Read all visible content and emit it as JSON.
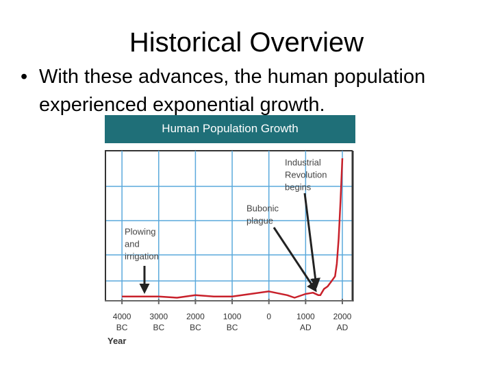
{
  "title": "Historical Overview",
  "bullet": "With these advances, the human population experienced exponential growth.",
  "chart_data": {
    "type": "line",
    "title": "Human Population Growth",
    "x_label": "Year",
    "x": [
      -4000,
      -3000,
      -2500,
      -2000,
      -1500,
      -1000,
      -500,
      0,
      500,
      700,
      1000,
      1200,
      1350,
      1400,
      1500,
      1600,
      1700,
      1800,
      1850,
      1900,
      1950,
      2000
    ],
    "series": [
      {
        "color": "#c8202a",
        "values": [
          0.2,
          0.2,
          0.15,
          0.25,
          0.2,
          0.2,
          0.3,
          0.4,
          0.25,
          0.15,
          0.3,
          0.35,
          0.25,
          0.25,
          0.5,
          0.6,
          0.8,
          1.0,
          1.5,
          2.5,
          4.0,
          5.7
        ]
      }
    ],
    "xlim": [
      -4450,
      2280
    ],
    "ylim": [
      0,
      6
    ],
    "xticks": [
      {
        "value": -4000,
        "label": "4000 BC"
      },
      {
        "value": -3000,
        "label": "3000 BC"
      },
      {
        "value": -2000,
        "label": "2000 BC"
      },
      {
        "value": -1000,
        "label": "1000 BC"
      },
      0,
      {
        "value": 1000,
        "label": "1000 AD"
      },
      {
        "value": 2000,
        "label": "2000 AD"
      }
    ],
    "grid": true,
    "annotations": [
      {
        "lines": [
          "Industrial",
          "Revolution",
          "begins"
        ]
      },
      {
        "lines": [
          "Bubonic",
          "plague"
        ]
      },
      {
        "lines": [
          "Plowing",
          "and",
          "irrigation"
        ]
      }
    ]
  }
}
